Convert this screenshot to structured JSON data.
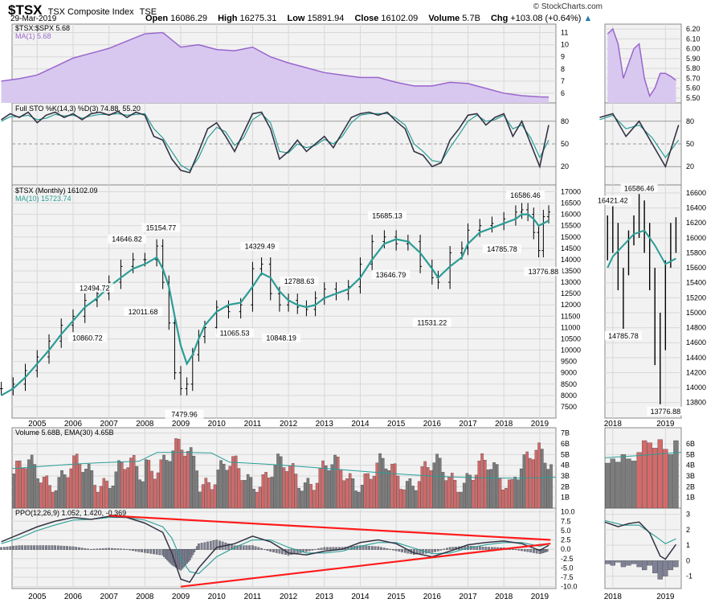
{
  "header": {
    "symbol": "$TSX",
    "name": "TSX Composite Index",
    "exchange": "TSE",
    "date": "29-Mar-2019",
    "copyright": "© StockCharts.com",
    "open_label": "Open",
    "open": "16086.29",
    "high_label": "High",
    "high": "16275.31",
    "low_label": "Low",
    "low": "15891.94",
    "close_label": "Close",
    "close": "16102.09",
    "volume_label": "Volume",
    "volume": "5.7B",
    "chg_label": "Chg",
    "chg": "+103.08 (+0.64%)",
    "arrow": "▲"
  },
  "colors": {
    "ratio_fill": "#d8c8ef",
    "ratio_line": "#9966cc",
    "ma": "#2a9d96",
    "line": "#333344",
    "up_vol": "#d46a6a",
    "down_vol": "#7c7c7c",
    "hist": "#7f8296",
    "trend": "#ff1a1a",
    "grid": "#d8d8d8",
    "bg": "#ececec"
  },
  "chart_data": [
    {
      "type": "area",
      "panel": "ratio",
      "legend": [
        "$TSX:$SPX 5.68",
        "MA(1) 5.68"
      ],
      "x": [
        2004.0,
        2004.5,
        2005.0,
        2005.5,
        2006.0,
        2006.5,
        2007.0,
        2007.5,
        2008.0,
        2008.5,
        2009.0,
        2009.5,
        2010.0,
        2010.5,
        2011.0,
        2011.5,
        2012.0,
        2012.5,
        2013.0,
        2013.5,
        2014.0,
        2014.5,
        2015.0,
        2015.5,
        2016.0,
        2016.5,
        2017.0,
        2017.5,
        2018.0,
        2018.5,
        2019.0,
        2019.25
      ],
      "y": [
        7.0,
        7.2,
        7.5,
        8.2,
        8.9,
        9.3,
        9.7,
        10.3,
        10.9,
        11.0,
        9.8,
        10.0,
        9.6,
        9.5,
        9.8,
        9.0,
        8.5,
        8.1,
        7.7,
        7.5,
        7.3,
        7.3,
        6.9,
        6.6,
        6.6,
        6.9,
        6.8,
        6.4,
        6.0,
        5.8,
        5.7,
        5.68
      ],
      "ylim": [
        5.2,
        11.7
      ],
      "yticks": [
        6,
        7,
        8,
        9,
        10,
        11
      ],
      "detail": {
        "x": [
          2017.9,
          2018.0,
          2018.1,
          2018.2,
          2018.3,
          2018.4,
          2018.5,
          2018.6,
          2018.7,
          2018.8,
          2018.9,
          2019.0,
          2019.1,
          2019.2
        ],
        "y": [
          6.15,
          6.2,
          6.05,
          5.7,
          5.85,
          6.0,
          6.05,
          5.7,
          5.52,
          5.6,
          5.75,
          5.75,
          5.72,
          5.68
        ],
        "yticks": [
          "6.20",
          "6.10",
          "6.00",
          "5.90",
          "5.80",
          "5.70",
          "5.60",
          "5.50"
        ],
        "ylim": [
          5.45,
          6.25
        ]
      }
    },
    {
      "type": "line",
      "panel": "stochastic",
      "title": "Full STO %K(14,3) %D(3) 74.88, 55.20",
      "x": [
        2004.0,
        2004.25,
        2004.5,
        2004.75,
        2005.0,
        2005.25,
        2005.5,
        2005.75,
        2006.0,
        2006.25,
        2006.5,
        2006.75,
        2007.0,
        2007.25,
        2007.5,
        2007.75,
        2008.0,
        2008.25,
        2008.5,
        2008.75,
        2009.0,
        2009.25,
        2009.5,
        2009.75,
        2010.0,
        2010.25,
        2010.5,
        2010.75,
        2011.0,
        2011.25,
        2011.5,
        2011.75,
        2012.0,
        2012.25,
        2012.5,
        2012.75,
        2013.0,
        2013.25,
        2013.5,
        2013.75,
        2014.0,
        2014.25,
        2014.5,
        2014.75,
        2015.0,
        2015.25,
        2015.5,
        2015.75,
        2016.0,
        2016.25,
        2016.5,
        2016.75,
        2017.0,
        2017.25,
        2017.5,
        2017.75,
        2018.0,
        2018.25,
        2018.5,
        2018.75,
        2019.0,
        2019.25
      ],
      "k": [
        82,
        90,
        85,
        92,
        78,
        88,
        92,
        85,
        90,
        82,
        90,
        92,
        88,
        93,
        85,
        92,
        88,
        60,
        55,
        30,
        15,
        12,
        40,
        70,
        78,
        60,
        40,
        65,
        90,
        92,
        70,
        30,
        40,
        55,
        40,
        50,
        60,
        45,
        65,
        85,
        90,
        92,
        88,
        92,
        80,
        70,
        40,
        35,
        20,
        25,
        55,
        70,
        88,
        90,
        75,
        85,
        90,
        60,
        80,
        50,
        20,
        75
      ],
      "d": [
        80,
        86,
        86,
        88,
        82,
        84,
        89,
        87,
        88,
        84,
        87,
        89,
        89,
        90,
        88,
        89,
        90,
        70,
        58,
        40,
        22,
        15,
        32,
        58,
        72,
        66,
        48,
        58,
        82,
        90,
        78,
        40,
        38,
        50,
        45,
        48,
        56,
        50,
        60,
        78,
        88,
        90,
        90,
        90,
        84,
        75,
        50,
        40,
        28,
        26,
        45,
        62,
        80,
        88,
        80,
        82,
        88,
        70,
        75,
        58,
        32,
        55
      ],
      "ylim": [
        0,
        100
      ],
      "yticks": [
        20,
        50,
        80
      ]
    },
    {
      "type": "ohlc",
      "panel": "price",
      "legend": [
        "$TSX (Monthly) 16102.09",
        "MA(10) 15723.74"
      ],
      "x": [
        2004.0,
        2004.33,
        2004.67,
        2005.0,
        2005.33,
        2005.67,
        2006.0,
        2006.33,
        2006.67,
        2007.0,
        2007.33,
        2007.67,
        2008.0,
        2008.33,
        2008.5,
        2008.67,
        2008.83,
        2009.0,
        2009.17,
        2009.33,
        2009.5,
        2009.67,
        2010.0,
        2010.33,
        2010.67,
        2011.0,
        2011.25,
        2011.5,
        2011.75,
        2012.0,
        2012.25,
        2012.5,
        2012.75,
        2013.0,
        2013.33,
        2013.67,
        2014.0,
        2014.33,
        2014.67,
        2015.0,
        2015.33,
        2015.67,
        2016.0,
        2016.17,
        2016.5,
        2016.83,
        2017.0,
        2017.33,
        2017.67,
        2018.0,
        2018.33,
        2018.5,
        2018.67,
        2018.83,
        2018.97,
        2019.1,
        2019.25
      ],
      "close": [
        8300,
        8500,
        9100,
        9700,
        10400,
        11100,
        11500,
        12200,
        12500,
        13000,
        13700,
        14000,
        14000,
        14600,
        13000,
        11200,
        9000,
        8300,
        8500,
        9800,
        10600,
        11000,
        11900,
        11700,
        12000,
        13600,
        13800,
        12500,
        12000,
        12200,
        11900,
        11800,
        12300,
        12700,
        12500,
        12800,
        13800,
        14800,
        15000,
        14700,
        14800,
        13700,
        13200,
        13000,
        14300,
        14500,
        15300,
        15500,
        15600,
        15800,
        16100,
        16200,
        16000,
        15200,
        14400,
        15900,
        16102
      ],
      "ma": [
        8000,
        8300,
        8800,
        9400,
        10000,
        10700,
        11300,
        11900,
        12300,
        12800,
        13200,
        13600,
        13800,
        14100,
        13600,
        12800,
        11500,
        10200,
        9400,
        9800,
        10500,
        11100,
        11700,
        12000,
        12100,
        12800,
        13400,
        13200,
        12600,
        12200,
        12000,
        11900,
        12000,
        12300,
        12500,
        12700,
        13200,
        14000,
        14700,
        14900,
        14800,
        14300,
        13600,
        13200,
        13700,
        14100,
        14700,
        15200,
        15400,
        15600,
        15800,
        16000,
        16000,
        15800,
        15500,
        15600,
        15724
      ],
      "annotations": [
        {
          "x": 2006.6,
          "label": "12494.72"
        },
        {
          "x": 2007.5,
          "label": "14646.82"
        },
        {
          "x": 2008.45,
          "label": "15154.77"
        },
        {
          "x": 2007.95,
          "label": "12011.68"
        },
        {
          "x": 2006.4,
          "label": "10860.72"
        },
        {
          "x": 2009.1,
          "label": "7479.96"
        },
        {
          "x": 2011.2,
          "label": "14329.49"
        },
        {
          "x": 2012.3,
          "label": "12788.63"
        },
        {
          "x": 2010.5,
          "label": "11065.53"
        },
        {
          "x": 2011.8,
          "label": "10848.19"
        },
        {
          "x": 2014.75,
          "label": "15685.13"
        },
        {
          "x": 2014.85,
          "label": "13646.79"
        },
        {
          "x": 2016.0,
          "label": "11531.22"
        },
        {
          "x": 2018.6,
          "label": "16586.46"
        },
        {
          "x": 2017.95,
          "label": "14785.78"
        },
        {
          "x": 2019.1,
          "label": "13776.88"
        }
      ],
      "ylim": [
        7000,
        17300
      ],
      "yticks": [
        "17000",
        "16500",
        "16000",
        "15500",
        "15000",
        "14500",
        "14000",
        "13500",
        "13000",
        "12500",
        "12000",
        "11500",
        "11000",
        "10500",
        "10000",
        "9500",
        "9000",
        "8500",
        "8000",
        "7500"
      ],
      "xticks": [
        "2005",
        "2006",
        "2007",
        "2008",
        "2009",
        "2010",
        "2011",
        "2012",
        "2013",
        "2014",
        "2015",
        "2016",
        "2017",
        "2018",
        "2019"
      ],
      "detail": {
        "annotations": [
          "16421.42",
          "16586.46",
          "14785.78",
          "13776.88"
        ],
        "yticks": [
          "16600",
          "16400",
          "16200",
          "16000",
          "15800",
          "15600",
          "15400",
          "15200",
          "15000",
          "14800",
          "14600",
          "14400",
          "14200",
          "14000",
          "13800"
        ],
        "xticks": [
          "2018",
          "2019"
        ]
      }
    },
    {
      "type": "bar",
      "panel": "volume",
      "legend": "Volume 5.68B, EMA(30) 4.65B",
      "ylim": [
        0,
        7.5
      ],
      "yticks": [
        "7B",
        "6B",
        "5B",
        "4B",
        "3B",
        "2B",
        "1B"
      ],
      "detail_yticks": [
        "6B",
        "5B",
        "4B",
        "3B",
        "2B",
        "1B"
      ]
    },
    {
      "type": "line",
      "panel": "ppo",
      "legend": "PPO(12,26,9) 1.052, 1.420, -0.369",
      "ylim": [
        -10.5,
        11
      ],
      "yticks": [
        "10.0",
        "7.5",
        "5.0",
        "2.5",
        "0.0",
        "-2.5",
        "-5.0",
        "-7.5",
        "-10.0"
      ],
      "ppo_x": [
        2004.0,
        2004.5,
        2005.0,
        2005.5,
        2006.0,
        2006.5,
        2007.0,
        2007.5,
        2008.0,
        2008.5,
        2008.75,
        2009.0,
        2009.25,
        2009.5,
        2010.0,
        2010.5,
        2011.0,
        2011.5,
        2012.0,
        2012.5,
        2013.0,
        2013.5,
        2014.0,
        2014.5,
        2015.0,
        2015.5,
        2016.0,
        2016.5,
        2017.0,
        2017.5,
        2018.0,
        2018.5,
        2019.0,
        2019.25
      ],
      "ppo": [
        2.0,
        4.0,
        6.0,
        7.5,
        8.5,
        8.0,
        8.8,
        8.5,
        7.0,
        4.5,
        -1.0,
        -8.0,
        -8.8,
        -5.0,
        0.5,
        1.5,
        3.5,
        2.0,
        -1.0,
        -1.5,
        -0.5,
        0.0,
        1.8,
        2.5,
        1.5,
        -1.0,
        -2.0,
        -0.5,
        1.2,
        1.8,
        2.2,
        1.5,
        -0.3,
        1.05
      ],
      "signal": [
        1.5,
        3.0,
        5.0,
        6.5,
        7.8,
        8.0,
        8.5,
        8.5,
        7.8,
        6.0,
        3.0,
        -2.5,
        -6.0,
        -6.5,
        -2.0,
        0.5,
        2.5,
        2.5,
        0.5,
        -1.0,
        -1.0,
        -0.5,
        0.8,
        1.8,
        1.8,
        0.3,
        -1.2,
        -1.0,
        0.3,
        1.2,
        1.8,
        1.8,
        0.8,
        1.42
      ],
      "trendlines": [
        {
          "x": [
            2007.0,
            2019.3
          ],
          "y": [
            9.0,
            2.5
          ]
        },
        {
          "x": [
            2009.0,
            2019.3
          ],
          "y": [
            -10.0,
            1.5
          ]
        }
      ],
      "detail_yticks": [
        "3",
        "2",
        "1",
        "0",
        "-1"
      ]
    }
  ]
}
